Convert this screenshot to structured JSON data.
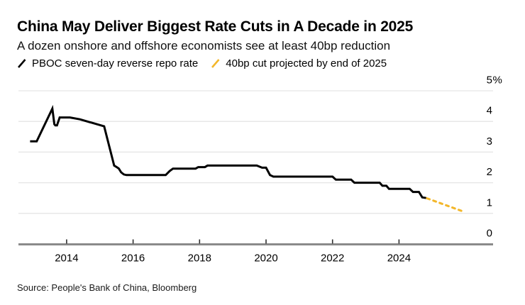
{
  "source": "Source: People's Bank of China, Bloomberg",
  "colors": {
    "line_actual": "#000000",
    "line_projection": "#F3B72B",
    "gridline": "#E5E5E5",
    "axis_line": "#8A8A8A",
    "tick_mark": "#2E2E2E",
    "background": "#FFFFFF"
  },
  "chart_data": {
    "type": "line",
    "title": "China May Deliver Biggest Rate Cuts in A Decade in 2025",
    "subtitle": "A dozen onshore and offshore economists see at least 40bp reduction",
    "xlabel": "",
    "ylabel": "",
    "xlim": [
      2012.55,
      2026.85
    ],
    "ylim": [
      0,
      5
    ],
    "grid": "horizontal",
    "legend_position": "top-left",
    "x_ticks": [
      2014,
      2016,
      2018,
      2020,
      2022,
      2024
    ],
    "y_ticks": [
      {
        "value": 0,
        "label": "0"
      },
      {
        "value": 1,
        "label": "1"
      },
      {
        "value": 2,
        "label": "2"
      },
      {
        "value": 3,
        "label": "3"
      },
      {
        "value": 4,
        "label": "4"
      },
      {
        "value": 5,
        "label": "5%"
      }
    ],
    "series": [
      {
        "name": "PBOC seven-day reverse repo rate",
        "color": "#000000",
        "style": "solid",
        "points": [
          [
            2012.9,
            3.35
          ],
          [
            2013.1,
            3.35
          ],
          [
            2013.57,
            4.42
          ],
          [
            2013.63,
            3.91
          ],
          [
            2013.66,
            3.87
          ],
          [
            2013.71,
            3.87
          ],
          [
            2013.79,
            4.13
          ],
          [
            2014.1,
            4.13
          ],
          [
            2014.4,
            4.07
          ],
          [
            2015.13,
            3.84
          ],
          [
            2015.43,
            2.56
          ],
          [
            2015.52,
            2.5
          ],
          [
            2015.57,
            2.46
          ],
          [
            2015.64,
            2.34
          ],
          [
            2015.72,
            2.27
          ],
          [
            2015.8,
            2.25
          ],
          [
            2016.98,
            2.25
          ],
          [
            2017.1,
            2.38
          ],
          [
            2017.2,
            2.46
          ],
          [
            2017.88,
            2.46
          ],
          [
            2017.96,
            2.51
          ],
          [
            2018.16,
            2.51
          ],
          [
            2018.24,
            2.56
          ],
          [
            2019.72,
            2.56
          ],
          [
            2019.88,
            2.49
          ],
          [
            2020.0,
            2.49
          ],
          [
            2020.12,
            2.25
          ],
          [
            2020.22,
            2.2
          ],
          [
            2022.0,
            2.2
          ],
          [
            2022.1,
            2.1
          ],
          [
            2022.56,
            2.1
          ],
          [
            2022.66,
            2.0
          ],
          [
            2023.42,
            2.0
          ],
          [
            2023.5,
            1.9
          ],
          [
            2023.62,
            1.9
          ],
          [
            2023.7,
            1.8
          ],
          [
            2024.32,
            1.8
          ],
          [
            2024.42,
            1.7
          ],
          [
            2024.6,
            1.7
          ],
          [
            2024.7,
            1.52
          ],
          [
            2024.82,
            1.5
          ]
        ]
      },
      {
        "name": "40bp cut projected by end of 2025",
        "color": "#F3B72B",
        "style": "dashed",
        "points": [
          [
            2024.84,
            1.49
          ],
          [
            2025.88,
            1.08
          ]
        ]
      }
    ]
  }
}
